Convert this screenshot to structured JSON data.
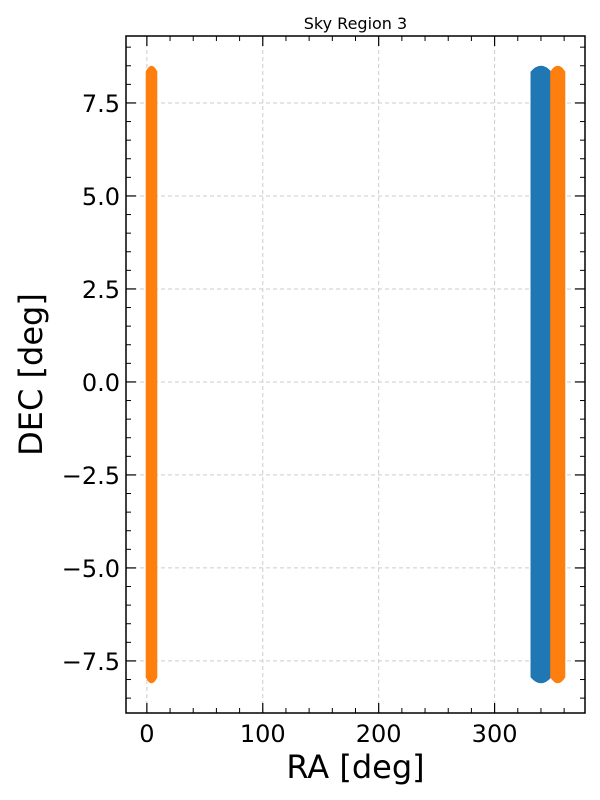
{
  "chart_data": {
    "type": "scatter",
    "title": "Sky Region 3",
    "xlabel": "RA [deg]",
    "ylabel": "DEC [deg]",
    "xlim": [
      -18,
      378
    ],
    "ylim": [
      -8.9,
      9.3
    ],
    "xticks": [
      0,
      100,
      200,
      300
    ],
    "xtick_labels": [
      "0",
      "100",
      "200",
      "300"
    ],
    "yticks": [
      -7.5,
      -5.0,
      -2.5,
      0.0,
      2.5,
      5.0,
      7.5
    ],
    "ytick_labels": [
      "−7.5",
      "−5.0",
      "−2.5",
      "0.0",
      "2.5",
      "5.0",
      "7.5"
    ],
    "grid": true,
    "series": [
      {
        "color": "#1f77b4",
        "x_range": [
          331,
          349
        ],
        "y_range": [
          -8.1,
          8.5
        ]
      },
      {
        "color": "#ff7f0e",
        "x_range": [
          -1,
          9
        ],
        "y_range": [
          -8.1,
          8.5
        ]
      },
      {
        "color": "#ff7f0e",
        "x_range": [
          348,
          361
        ],
        "y_range": [
          -8.1,
          8.5
        ]
      }
    ]
  }
}
